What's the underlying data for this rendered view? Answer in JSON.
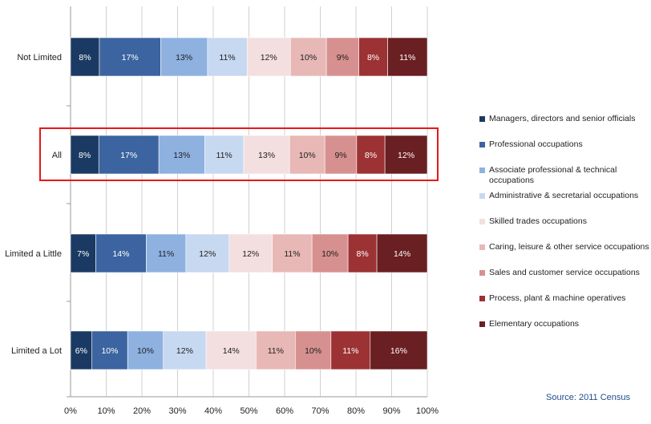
{
  "chart_data": {
    "type": "bar",
    "orientation": "horizontal",
    "stacked": true,
    "percent": true,
    "categories": [
      "Not Limited",
      "All",
      "Limited a Little",
      "Limited a Lot"
    ],
    "highlighted_category": "All",
    "series": [
      {
        "name": "Managers, directors and senior officials",
        "color": "#1b3a63",
        "values": [
          8,
          8,
          7,
          6
        ],
        "labels": [
          "8%",
          "8%",
          "7%",
          "6%"
        ]
      },
      {
        "name": "Professional occupations",
        "color": "#3b64a0",
        "values": [
          17,
          17,
          14,
          10
        ],
        "labels": [
          "17%",
          "17%",
          "14%",
          "10%"
        ]
      },
      {
        "name": "Associate professional & technical occupations",
        "color": "#8eb1e0",
        "values": [
          13,
          13,
          11,
          10
        ],
        "labels": [
          "13%",
          "13%",
          "11%",
          "10%"
        ]
      },
      {
        "name": "Administrative & secretarial occupations",
        "color": "#c7d8f1",
        "values": [
          11,
          11,
          12,
          12
        ],
        "labels": [
          "11%",
          "11%",
          "12%",
          "12%"
        ]
      },
      {
        "name": "Skilled trades occupations",
        "color": "#f3dfdf",
        "values": [
          12,
          13,
          12,
          14
        ],
        "labels": [
          "12%",
          "13%",
          "12%",
          "14%"
        ]
      },
      {
        "name": "Caring, leisure & other service occupations",
        "color": "#e8b8b6",
        "values": [
          10,
          10,
          11,
          11
        ],
        "labels": [
          "10%",
          "10%",
          "11%",
          "11%"
        ]
      },
      {
        "name": "Sales and customer service occupations",
        "color": "#d79090",
        "values": [
          9,
          9,
          10,
          10
        ],
        "labels": [
          "9%",
          "9%",
          "10%",
          "10%"
        ]
      },
      {
        "name": "Process, plant & machine operatives",
        "color": "#9c3234",
        "values": [
          8,
          8,
          8,
          11
        ],
        "labels": [
          "8%",
          "8%",
          "8%",
          "11%"
        ]
      },
      {
        "name": "Elementary occupations",
        "color": "#6a1f22",
        "values": [
          11,
          12,
          14,
          16
        ],
        "labels": [
          "11%",
          "12%",
          "14%",
          "16%"
        ]
      }
    ],
    "xlim": [
      0,
      100
    ],
    "x_ticks": [
      "0%",
      "10%",
      "20%",
      "30%",
      "40%",
      "50%",
      "60%",
      "70%",
      "80%",
      "90%",
      "100%"
    ],
    "grid": true,
    "legend_position": "right",
    "source": "Source: 2011 Census",
    "highlight_color": "#e8171a"
  }
}
